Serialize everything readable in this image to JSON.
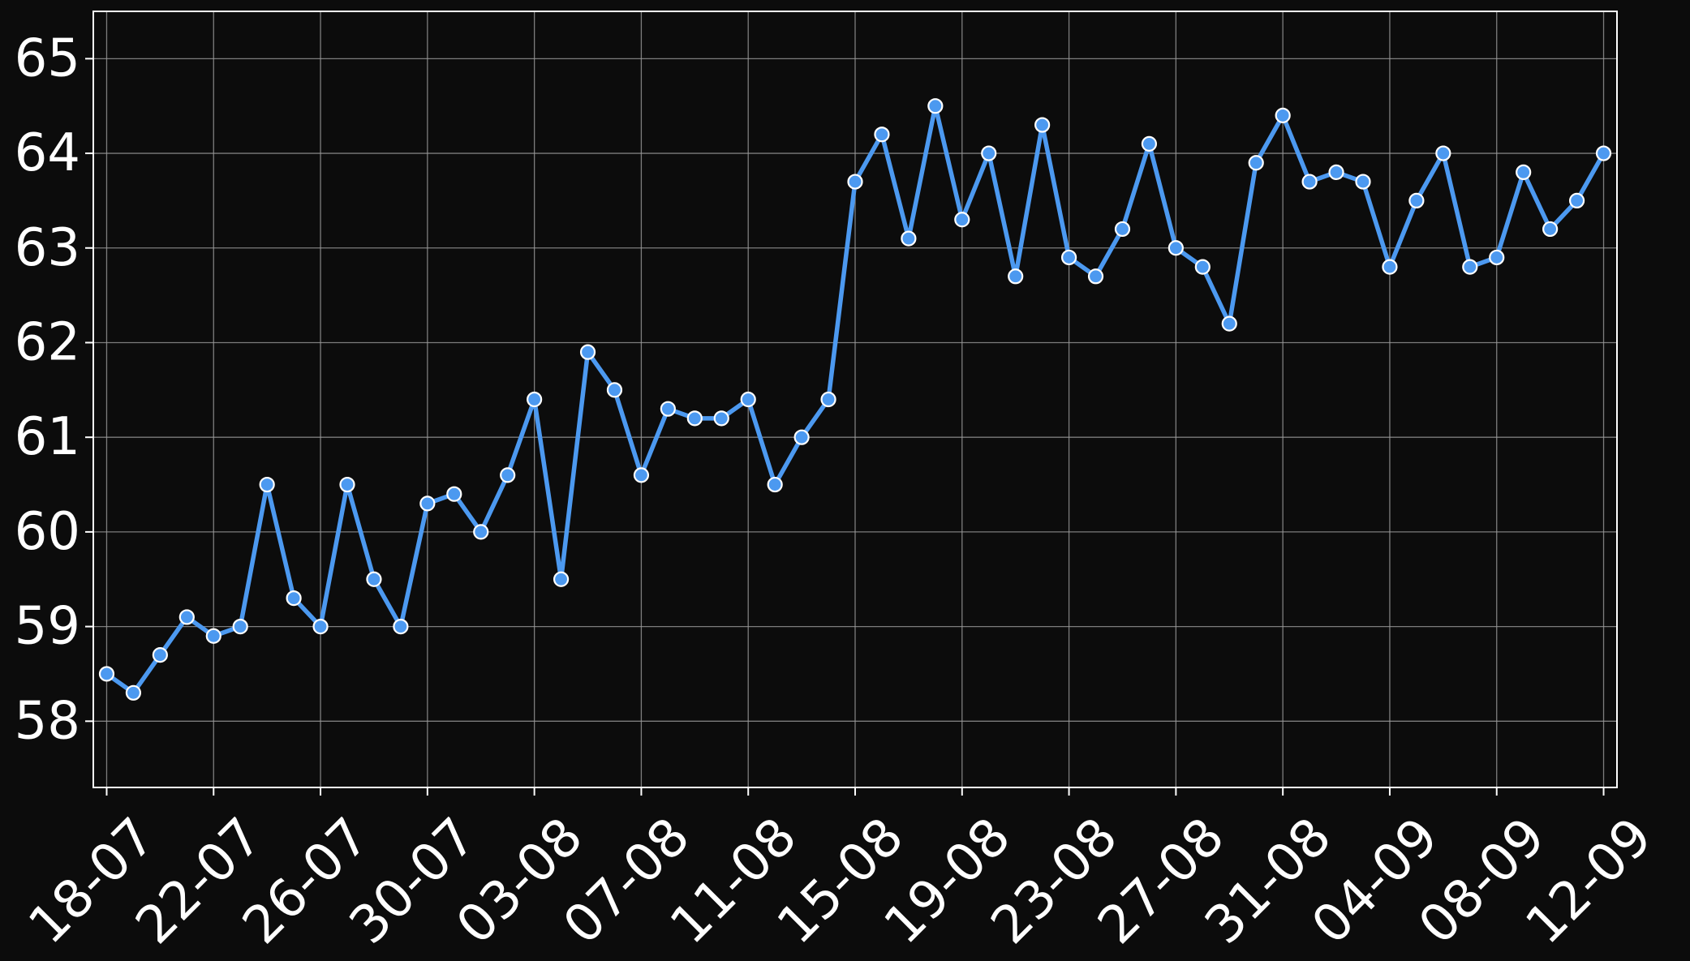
{
  "colors": {
    "background": "#0c0c0c",
    "line": "#4c99f0",
    "marker_fill": "#4c99f0",
    "marker_edge": "#ffffff",
    "grid": "#9a9a9a",
    "axes": "#ffffff",
    "text": "#ffffff"
  },
  "chart_data": {
    "type": "line",
    "title": "",
    "xlabel": "",
    "ylabel": "",
    "x": [
      "2024-07-18",
      "2024-07-19",
      "2024-07-20",
      "2024-07-21",
      "2024-07-22",
      "2024-07-23",
      "2024-07-24",
      "2024-07-25",
      "2024-07-26",
      "2024-07-27",
      "2024-07-28",
      "2024-07-29",
      "2024-07-30",
      "2024-07-31",
      "2024-08-01",
      "2024-08-02",
      "2024-08-03",
      "2024-08-04",
      "2024-08-05",
      "2024-08-06",
      "2024-08-07",
      "2024-08-08",
      "2024-08-09",
      "2024-08-10",
      "2024-08-11",
      "2024-08-12",
      "2024-08-13",
      "2024-08-14",
      "2024-08-15",
      "2024-08-16",
      "2024-08-17",
      "2024-08-18",
      "2024-08-19",
      "2024-08-20",
      "2024-08-21",
      "2024-08-22",
      "2024-08-23",
      "2024-08-24",
      "2024-08-25",
      "2024-08-26",
      "2024-08-27",
      "2024-08-28",
      "2024-08-29",
      "2024-08-30",
      "2024-08-31",
      "2024-09-01",
      "2024-09-02",
      "2024-09-03",
      "2024-09-04",
      "2024-09-05",
      "2024-09-06",
      "2024-09-07",
      "2024-09-08",
      "2024-09-09",
      "2024-09-10",
      "2024-09-11",
      "2024-09-12"
    ],
    "series": [
      {
        "values": [
          58.5,
          58.3,
          58.7,
          59.1,
          58.9,
          59.0,
          60.5,
          59.3,
          59.0,
          60.5,
          59.5,
          59.0,
          60.3,
          60.4,
          60.0,
          60.6,
          61.4,
          59.5,
          61.9,
          61.5,
          60.6,
          61.3,
          61.2,
          61.2,
          61.4,
          60.5,
          61.0,
          61.4,
          63.7,
          64.2,
          63.1,
          64.5,
          63.3,
          64.0,
          62.7,
          64.3,
          62.9,
          62.7,
          63.2,
          64.1,
          63.0,
          62.8,
          62.2,
          63.9,
          64.4,
          63.7,
          63.8,
          63.7,
          62.8,
          63.5,
          64.0,
          62.8,
          62.9,
          63.8,
          63.2,
          63.5,
          64.0
        ]
      }
    ],
    "x_ticks": [
      "2024-07-18",
      "2024-07-22",
      "2024-07-26",
      "2024-07-30",
      "2024-08-03",
      "2024-08-07",
      "2024-08-11",
      "2024-08-15",
      "2024-08-19",
      "2024-08-23",
      "2024-08-27",
      "2024-08-31",
      "2024-09-04",
      "2024-09-08",
      "2024-09-12"
    ],
    "x_tick_labels": [
      "18-07",
      "22-07",
      "26-07",
      "30-07",
      "03-08",
      "07-08",
      "11-08",
      "15-08",
      "19-08",
      "23-08",
      "27-08",
      "31-08",
      "04-09",
      "08-09",
      "12-09"
    ],
    "y_ticks": [
      58,
      59,
      60,
      61,
      62,
      63,
      64,
      65
    ],
    "y_tick_labels": [
      "58",
      "59",
      "60",
      "61",
      "62",
      "63",
      "64",
      "65"
    ],
    "ylim": [
      57.3,
      65.5
    ],
    "xlim": [
      "2024-07-17T12:00",
      "2024-09-12T12:00"
    ],
    "grid": true,
    "legend": "none"
  }
}
